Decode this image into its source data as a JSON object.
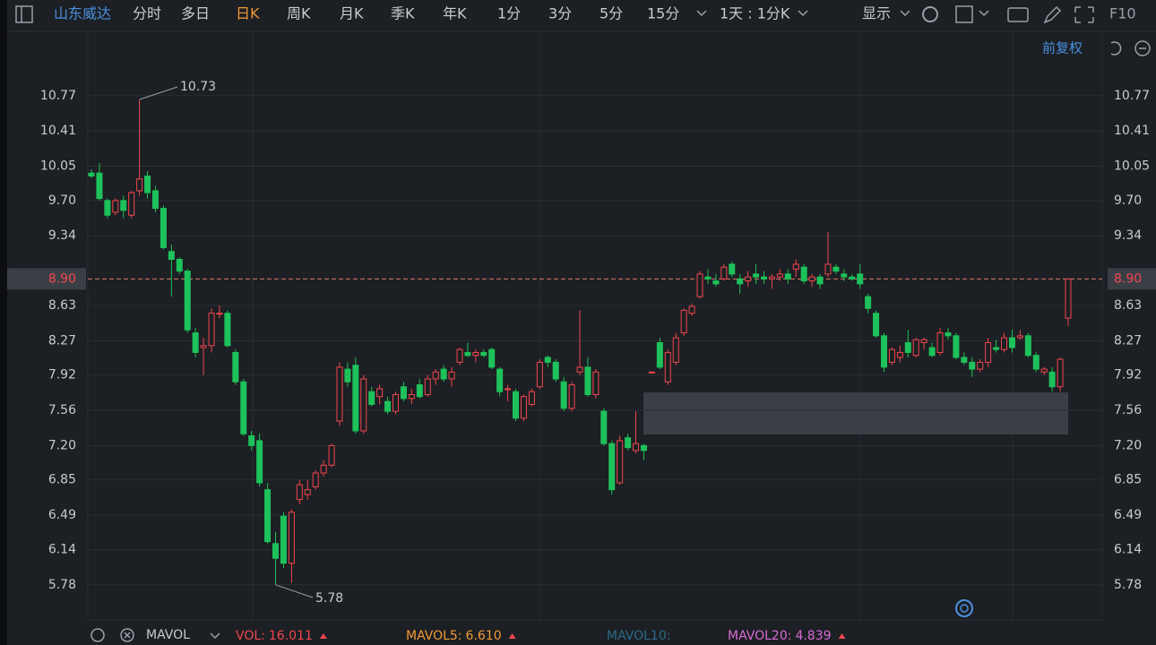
{
  "toolbar": {
    "stock": "山东威达",
    "periods": [
      "分时",
      "多日",
      "日K",
      "周K",
      "月K",
      "季K",
      "年K",
      "1分",
      "3分",
      "5分",
      "15分"
    ],
    "active": 2,
    "range": "1天 : 1分K",
    "display": "显示",
    "f10": "F10",
    "adjust": "前复权"
  },
  "chart_data": {
    "type": "candlestick",
    "open": [
      9.98,
      9.98,
      9.7,
      9.58,
      9.7,
      9.55,
      9.8,
      9.95,
      9.8,
      9.62,
      9.18,
      9.1,
      8.98,
      8.35,
      8.2,
      8.22,
      8.55,
      8.55,
      8.15,
      7.85,
      7.3,
      7.25,
      6.75,
      6.2,
      6.48,
      6.0,
      6.65,
      6.7,
      6.78,
      6.92,
      7.0,
      7.45,
      7.98,
      8.02,
      7.35,
      7.75,
      7.7,
      7.65,
      7.55,
      7.8,
      7.68,
      7.82,
      7.72,
      7.88,
      7.98,
      7.88,
      8.05,
      8.15,
      8.12,
      8.15,
      8.18,
      7.98,
      7.78,
      7.75,
      7.48,
      7.62,
      7.8,
      8.1,
      8.05,
      7.85,
      7.58,
      7.95,
      8.0,
      7.72,
      7.55,
      7.22,
      6.82,
      7.28,
      7.15,
      7.2,
      7.95,
      8.25,
      7.85,
      8.05,
      8.35,
      8.55,
      8.72,
      8.92,
      8.88,
      8.9,
      9.05,
      8.9,
      8.88,
      8.95,
      8.92,
      8.9,
      8.92,
      8.95,
      9.0,
      9.02,
      8.88,
      8.92,
      8.95,
      9.02,
      8.95,
      8.92,
      8.95,
      8.72,
      8.55,
      8.32,
      8.05,
      8.1,
      8.25,
      8.12,
      8.25,
      8.2,
      8.15,
      8.35,
      8.32,
      8.1,
      8.05,
      7.98,
      8.05,
      8.2,
      8.18,
      8.3,
      8.3,
      8.32,
      8.12,
      7.95,
      7.95,
      7.8,
      8.5
    ],
    "high": [
      10.02,
      10.08,
      9.72,
      9.72,
      9.75,
      9.8,
      10.73,
      10.0,
      9.85,
      9.65,
      9.25,
      9.12,
      9.0,
      8.4,
      8.3,
      8.6,
      8.63,
      8.58,
      8.18,
      7.88,
      7.35,
      7.32,
      6.82,
      6.32,
      6.52,
      6.55,
      6.85,
      6.85,
      6.95,
      7.05,
      7.22,
      8.05,
      8.05,
      8.1,
      7.92,
      7.8,
      7.82,
      7.7,
      7.75,
      7.85,
      7.78,
      7.88,
      7.92,
      7.98,
      8.02,
      8.0,
      8.2,
      8.25,
      8.18,
      8.18,
      8.2,
      8.0,
      7.82,
      7.78,
      7.72,
      7.78,
      8.08,
      8.12,
      8.08,
      7.9,
      7.85,
      8.58,
      8.1,
      7.98,
      7.58,
      7.25,
      7.3,
      7.32,
      7.55,
      7.22,
      7.95,
      8.3,
      8.18,
      8.35,
      8.6,
      8.65,
      8.98,
      9.0,
      8.95,
      9.05,
      9.08,
      8.95,
      8.98,
      9.05,
      8.98,
      8.95,
      9.0,
      9.0,
      9.1,
      9.05,
      8.95,
      8.95,
      9.38,
      9.05,
      9.0,
      8.95,
      9.05,
      8.75,
      8.58,
      8.35,
      8.2,
      8.22,
      8.38,
      8.3,
      8.3,
      8.25,
      8.4,
      8.4,
      8.35,
      8.15,
      8.1,
      8.08,
      8.3,
      8.28,
      8.35,
      8.38,
      8.38,
      8.35,
      8.15,
      8.0,
      8.0,
      8.1,
      8.9
    ],
    "low": [
      9.93,
      9.7,
      9.52,
      9.55,
      9.52,
      9.52,
      9.75,
      9.72,
      9.58,
      9.2,
      8.72,
      8.95,
      8.35,
      8.1,
      7.92,
      8.15,
      8.5,
      8.2,
      7.82,
      7.3,
      7.15,
      6.78,
      6.2,
      5.78,
      5.95,
      5.8,
      6.6,
      6.65,
      6.75,
      6.88,
      6.98,
      7.4,
      7.8,
      7.32,
      7.32,
      7.6,
      7.62,
      7.52,
      7.52,
      7.65,
      7.62,
      7.68,
      7.7,
      7.82,
      7.85,
      7.8,
      8.02,
      8.1,
      8.05,
      8.1,
      7.98,
      7.7,
      7.65,
      7.45,
      7.45,
      7.6,
      7.78,
      8.0,
      7.85,
      7.55,
      7.55,
      7.92,
      7.7,
      7.68,
      7.2,
      6.7,
      6.8,
      7.15,
      7.12,
      7.05,
      7.95,
      7.98,
      7.82,
      8.02,
      8.32,
      8.52,
      8.7,
      8.85,
      8.82,
      8.88,
      8.92,
      8.75,
      8.82,
      8.85,
      8.85,
      8.8,
      8.88,
      8.85,
      8.92,
      8.85,
      8.82,
      8.8,
      8.92,
      8.95,
      8.88,
      8.88,
      8.8,
      8.55,
      8.3,
      7.95,
      8.02,
      8.05,
      8.1,
      8.1,
      8.18,
      8.1,
      8.12,
      8.28,
      8.08,
      8.02,
      7.9,
      7.95,
      8.0,
      8.15,
      8.15,
      8.15,
      8.28,
      8.1,
      7.95,
      7.92,
      7.75,
      7.75,
      8.42
    ],
    "close": [
      9.95,
      9.72,
      9.55,
      9.7,
      9.6,
      9.78,
      9.92,
      9.78,
      9.62,
      9.22,
      9.1,
      8.98,
      8.38,
      8.15,
      8.22,
      8.55,
      8.55,
      8.22,
      7.85,
      7.32,
      7.2,
      6.82,
      6.22,
      6.05,
      6.0,
      6.52,
      6.8,
      6.75,
      6.92,
      7.0,
      7.2,
      8.0,
      7.85,
      7.35,
      7.88,
      7.62,
      7.78,
      7.55,
      7.72,
      7.68,
      7.72,
      7.7,
      7.88,
      7.95,
      7.88,
      7.95,
      8.18,
      8.12,
      8.15,
      8.12,
      8.0,
      7.75,
      7.78,
      7.48,
      7.7,
      7.75,
      8.05,
      8.05,
      7.88,
      7.58,
      7.82,
      8.0,
      7.72,
      7.95,
      7.22,
      6.75,
      7.25,
      7.18,
      7.22,
      7.15,
      7.95,
      8.0,
      8.15,
      8.3,
      8.58,
      8.62,
      8.95,
      8.9,
      8.85,
      9.02,
      8.95,
      8.85,
      8.92,
      8.92,
      8.9,
      8.92,
      8.95,
      8.9,
      9.05,
      8.88,
      8.92,
      8.85,
      9.05,
      8.98,
      8.92,
      8.9,
      8.85,
      8.6,
      8.32,
      8.0,
      8.18,
      8.15,
      8.15,
      8.28,
      8.28,
      8.12,
      8.35,
      8.32,
      8.1,
      8.05,
      7.98,
      8.05,
      8.25,
      8.18,
      8.3,
      8.2,
      8.32,
      8.12,
      7.98,
      7.98,
      7.8,
      8.08,
      8.9
    ],
    "up_color": "#f0474f",
    "down_color": "#1ec25a",
    "ylim": [
      5.44,
      11.38
    ],
    "yticks": [
      5.78,
      6.14,
      6.49,
      6.85,
      {
        "value": 7.2,
        "label": "7.20"
      },
      7.56,
      7.92,
      8.27,
      8.63,
      9.34,
      {
        "value": 9.7,
        "label": "9.70"
      },
      10.05,
      10.41,
      10.77
    ],
    "grid": true,
    "last_price": {
      "value": 8.9,
      "label": "8.90"
    },
    "max_label": 10.73,
    "min_label": 5.78
  },
  "indicators": {
    "name": "MAVOL",
    "items": [
      {
        "label": "VOL:",
        "value": "16.011",
        "color": "#f0474f"
      },
      {
        "label": "MAVOL5:",
        "value": "6.610",
        "color": "#f29a36"
      },
      {
        "label": "MAVOL10:",
        "value": "",
        "color": "#2d6a8a"
      },
      {
        "label": "MAVOL20:",
        "value": "4.839",
        "color": "#d86bd6"
      }
    ]
  }
}
